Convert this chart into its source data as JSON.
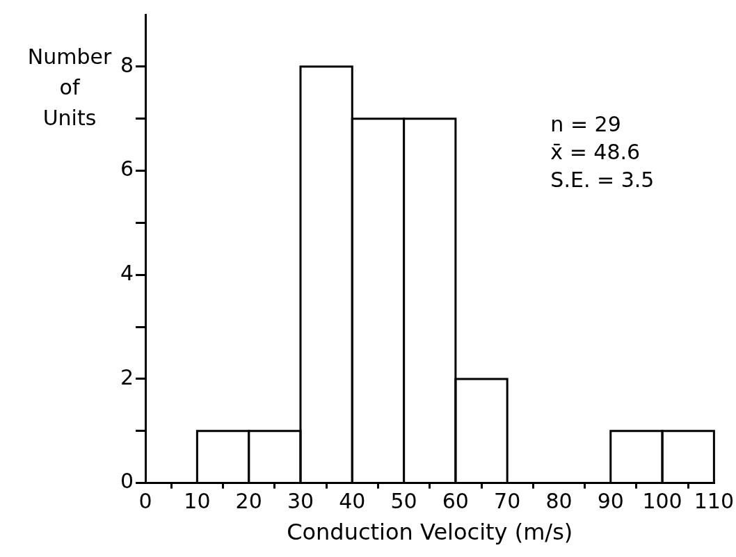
{
  "chart_data": {
    "type": "histogram",
    "bins": [
      10,
      20,
      30,
      40,
      50,
      60,
      70,
      80,
      90,
      100,
      110
    ],
    "values": [
      1,
      1,
      8,
      7,
      7,
      2,
      0,
      0,
      1,
      1
    ],
    "color": "#000000",
    "xlabel": "Conduction Velocity (m/s)",
    "ylabel": "Number of Units",
    "xlim": [
      0,
      110
    ],
    "xticks": [
      0,
      10,
      20,
      30,
      40,
      50,
      60,
      70,
      80,
      90,
      100,
      110
    ],
    "ylim": [
      0,
      9
    ],
    "yticks": [
      0,
      {
        "value": 1,
        "label": null
      },
      2,
      {
        "value": 3,
        "label": null
      },
      4,
      {
        "value": 5,
        "label": null
      },
      6,
      {
        "value": 7,
        "label": null
      },
      8
    ],
    "annotations": [
      "n = 29",
      "x̄ = 48.6",
      "S.E. = 3.5"
    ],
    "grid": false,
    "legend": false
  }
}
